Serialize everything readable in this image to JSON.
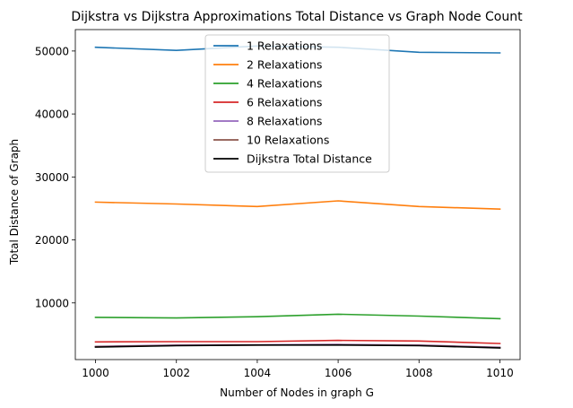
{
  "chart_data": {
    "type": "line",
    "title": "Dijkstra vs Dijkstra Approximations Total Distance vs Graph Node Count",
    "xlabel": "Number of Nodes in graph G",
    "ylabel": "Total Distance of Graph",
    "x": [
      1000,
      1002,
      1004,
      1006,
      1008,
      1010
    ],
    "xticks": [
      1000,
      1002,
      1004,
      1006,
      1008,
      1010
    ],
    "yticks": [
      10000,
      20000,
      30000,
      40000,
      50000
    ],
    "xlim": [
      999.5,
      1010.5
    ],
    "ylim": [
      1000,
      53400
    ],
    "grid": false,
    "legend_position": "upper center",
    "series": [
      {
        "name": "1 Relaxations",
        "color": "#1f77b4",
        "values": [
          50600,
          50100,
          50800,
          50600,
          49800,
          49700
        ]
      },
      {
        "name": "2 Relaxations",
        "color": "#ff7f0e",
        "values": [
          26000,
          25700,
          25300,
          26200,
          25300,
          24900
        ]
      },
      {
        "name": "4 Relaxations",
        "color": "#2ca02c",
        "values": [
          7700,
          7600,
          7800,
          8200,
          7900,
          7500
        ]
      },
      {
        "name": "6 Relaxations",
        "color": "#d62728",
        "values": [
          3800,
          3850,
          3850,
          4050,
          3950,
          3550
        ]
      },
      {
        "name": "8 Relaxations",
        "color": "#9467bd",
        "values": [
          3100,
          3300,
          3350,
          3400,
          3300,
          2950
        ]
      },
      {
        "name": "10 Relaxations",
        "color": "#8c564b",
        "values": [
          3050,
          3250,
          3300,
          3350,
          3250,
          2900
        ]
      },
      {
        "name": "Dijkstra Total Distance",
        "color": "#000000",
        "values": [
          3000,
          3200,
          3300,
          3300,
          3200,
          2850
        ]
      }
    ]
  }
}
